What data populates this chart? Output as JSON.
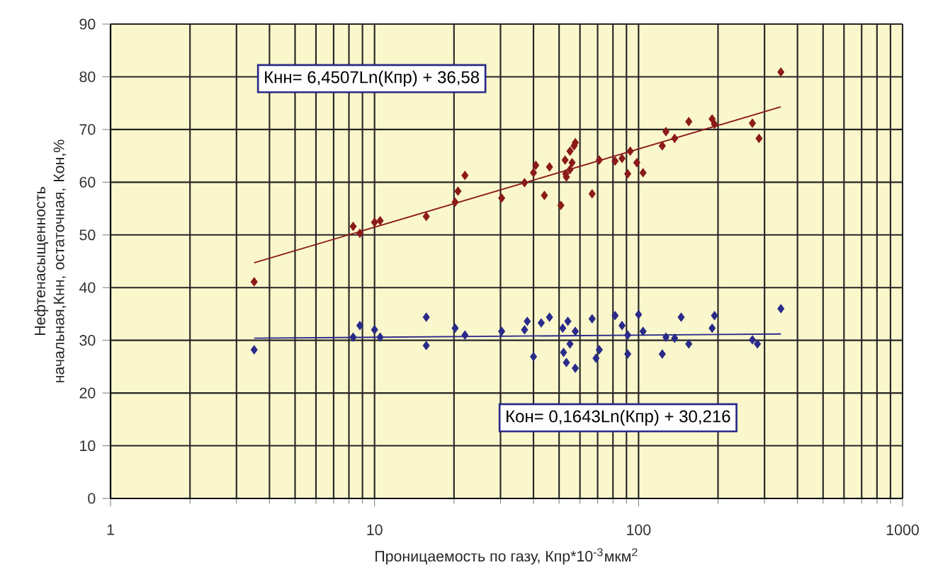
{
  "chart_data": {
    "type": "scatter",
    "xlabel": "Проницаемость по газу, Кпр*10$^{-3}$мкм$^{2}$",
    "ylabel": "Нефтенасыщенность начальная,Кнн, остаточная, Кон,%",
    "log": "x",
    "xlim": [
      1,
      1000
    ],
    "xticks": [
      1,
      10,
      100,
      1000
    ],
    "ylim": [
      0,
      90
    ],
    "yticks": [
      0,
      10,
      20,
      30,
      40,
      50,
      60,
      70,
      80,
      90
    ],
    "grid": true,
    "marker": "diamond",
    "annotations": [
      "Кнн= 6,4507Ln(Кпр) + 36,58",
      "Кон= 0,1643Ln(Кпр) + 30,216"
    ],
    "series": [
      {
        "color": "#8b1a1a",
        "x": [
          3.5,
          8.3,
          8.8,
          10,
          10.5,
          15.7,
          20.2,
          20.7,
          22,
          30.3,
          37,
          40,
          40.8,
          46,
          44,
          50.8,
          52.7,
          53.3,
          55,
          57,
          57.6,
          55,
          56,
          53,
          66.7,
          71,
          81.5,
          86.6,
          91,
          93,
          98.5,
          104,
          123,
          127,
          137,
          155,
          190,
          194,
          270,
          286,
          346
        ],
        "values": [
          41.1,
          51.6,
          50.3,
          52.4,
          52.7,
          53.5,
          56.2,
          58.3,
          61.3,
          57,
          59.9,
          61.8,
          63.2,
          62.9,
          57.5,
          55.6,
          64.2,
          61,
          62.4,
          66.9,
          67.5,
          65.9,
          63.7,
          61.6,
          57.8,
          64.2,
          64,
          64.5,
          61.6,
          65.9,
          63.7,
          61.8,
          66.9,
          69.6,
          68.3,
          71.5,
          72,
          71,
          71.2,
          68.3,
          80.9
        ]
      },
      {
        "color": "#2a2a8a",
        "x": [
          3.5,
          8.3,
          8.8,
          10,
          10.5,
          15.7,
          15.7,
          20.2,
          22,
          30.3,
          37.9,
          37,
          40,
          42.8,
          46,
          51.6,
          54,
          57.6,
          55,
          52,
          53.3,
          57.6,
          66.7,
          71,
          69,
          81.5,
          86.6,
          91,
          100,
          91,
          104,
          127,
          123,
          137,
          145,
          155,
          194,
          190,
          270,
          282,
          346
        ],
        "values": [
          28.2,
          30.6,
          32.8,
          32,
          30.6,
          34.4,
          29,
          32.3,
          31,
          31.7,
          33.6,
          32,
          26.9,
          33.3,
          34.4,
          32.3,
          33.6,
          31.7,
          29.3,
          27.7,
          25.8,
          24.7,
          34.1,
          28.2,
          26.6,
          34.7,
          32.8,
          31,
          34.9,
          27.4,
          31.7,
          30.6,
          27.4,
          30.4,
          34.4,
          29.3,
          34.7,
          32.3,
          30.1,
          29.3,
          36
        ]
      },
      {
        "type": "line",
        "marker": "none",
        "color": "#8b1a1a",
        "x": [
          3.5,
          346
        ],
        "values": [
          44.7,
          74.3
        ]
      },
      {
        "type": "line",
        "marker": "none",
        "color": "#2a2a8a",
        "x": [
          3.5,
          346
        ],
        "values": [
          30.4,
          31.2
        ]
      }
    ]
  }
}
